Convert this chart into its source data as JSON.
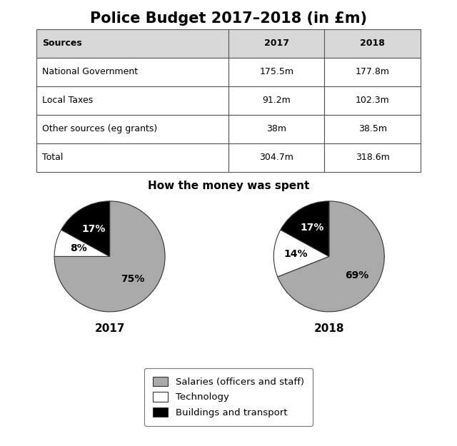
{
  "title": "Police Budget 2017–2018 (in £m)",
  "table": {
    "headers": [
      "Sources",
      "2017",
      "2018"
    ],
    "rows": [
      [
        "National Government",
        "175.5m",
        "177.8m"
      ],
      [
        "Local Taxes",
        "91.2m",
        "102.3m"
      ],
      [
        "Other sources (eg grants)",
        "38m",
        "38.5m"
      ],
      [
        "Total",
        "304.7m",
        "318.6m"
      ]
    ]
  },
  "pie_title": "How the money was spent",
  "pie_2017": {
    "label": "2017",
    "values": [
      75,
      8,
      17
    ],
    "colors": [
      "#aaaaaa",
      "#ffffff",
      "#000000"
    ],
    "pct_labels": [
      "75%",
      "8%",
      "17%"
    ],
    "pct_label_colors": [
      "black",
      "black",
      "white"
    ],
    "pct_radii": [
      0.58,
      0.58,
      0.58
    ]
  },
  "pie_2018": {
    "label": "2018",
    "values": [
      69,
      14,
      17
    ],
    "colors": [
      "#aaaaaa",
      "#ffffff",
      "#000000"
    ],
    "pct_labels": [
      "69%",
      "14%",
      "17%"
    ],
    "pct_label_colors": [
      "black",
      "black",
      "white"
    ],
    "pct_radii": [
      0.6,
      0.6,
      0.6
    ]
  },
  "pie_startangle": 90,
  "legend_labels": [
    "Salaries (officers and staff)",
    "Technology",
    "Buildings and transport"
  ],
  "legend_colors": [
    "#aaaaaa",
    "#ffffff",
    "#000000"
  ],
  "background_color": "#ffffff",
  "text_color": "#000000",
  "table_header_bg": "#d8d8d8",
  "table_border_color": "#555555"
}
